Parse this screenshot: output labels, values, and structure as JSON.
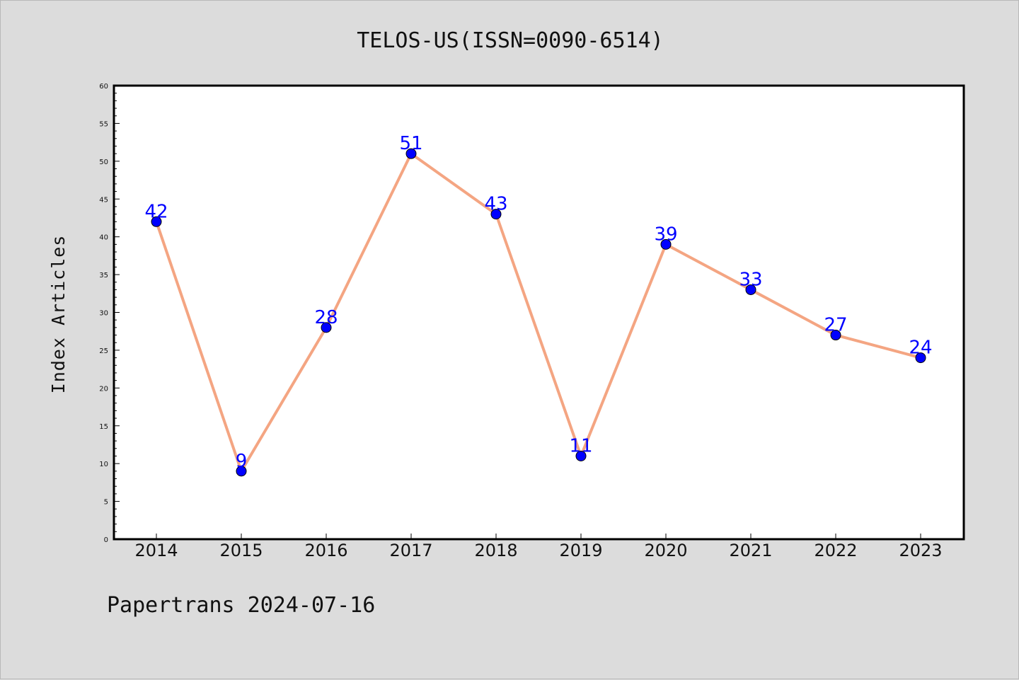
{
  "chart_data": {
    "type": "line",
    "title": "TELOS-US(ISSN=0090-6514)",
    "xlabel": "",
    "ylabel": "Index Articles",
    "categories": [
      "2014",
      "2015",
      "2016",
      "2017",
      "2018",
      "2019",
      "2020",
      "2021",
      "2022",
      "2023"
    ],
    "series": [
      {
        "values": [
          42,
          9,
          28,
          51,
          43,
          11,
          39,
          33,
          27,
          24
        ]
      }
    ],
    "ylim": [
      0,
      60
    ],
    "y_major_ticks": [
      0,
      5,
      10,
      15,
      20,
      25,
      30,
      35,
      40,
      45,
      50,
      55,
      60
    ],
    "y_tick_labels": [
      "0",
      "5",
      "10",
      "15",
      "20",
      "25",
      "30",
      "35",
      "40",
      "45",
      "50",
      "55",
      "60"
    ],
    "data_labels": [
      "42",
      "9",
      "28",
      "51",
      "43",
      "11",
      "39",
      "33",
      "27",
      "24"
    ],
    "grid": false,
    "legend": "none",
    "colors": {
      "line": "#f4a582",
      "marker": "#0000ff",
      "data_label": "#0000ff",
      "background": "#dcdcdc",
      "plot_area": "#ffffff"
    }
  },
  "footer": "Papertrans 2024-07-16"
}
